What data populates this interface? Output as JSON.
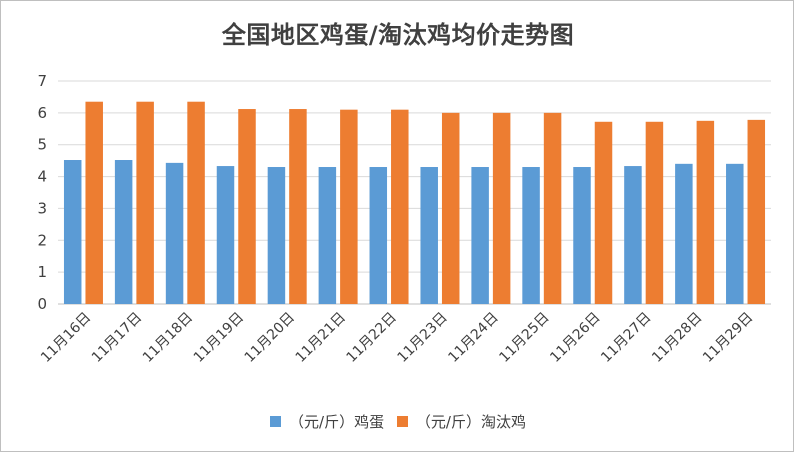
{
  "chart_data": {
    "type": "bar",
    "title": "全国地区鸡蛋/淘汰鸡均价走势图",
    "categories": [
      "11月16日",
      "11月17日",
      "11月18日",
      "11月19日",
      "11月20日",
      "11月21日",
      "11月22日",
      "11月23日",
      "11月24日",
      "11月25日",
      "11月26日",
      "11月27日",
      "11月28日",
      "11月29日"
    ],
    "series": [
      {
        "name": "（元/斤）鸡蛋",
        "color": "#5b9bd5",
        "values": [
          4.52,
          4.52,
          4.43,
          4.33,
          4.3,
          4.3,
          4.3,
          4.3,
          4.3,
          4.3,
          4.3,
          4.33,
          4.4,
          4.4
        ]
      },
      {
        "name": "（元/斤）淘汰鸡",
        "color": "#ed7d31",
        "values": [
          6.35,
          6.35,
          6.35,
          6.12,
          6.12,
          6.1,
          6.1,
          6.0,
          6.0,
          6.0,
          5.72,
          5.72,
          5.75,
          5.78
        ]
      }
    ],
    "ylim": [
      0,
      7
    ],
    "yticks": [
      "0",
      "1",
      "2",
      "3",
      "4",
      "5",
      "6",
      "7"
    ],
    "xlabel": "",
    "ylabel": "",
    "grid": true,
    "legend_position": "bottom"
  }
}
